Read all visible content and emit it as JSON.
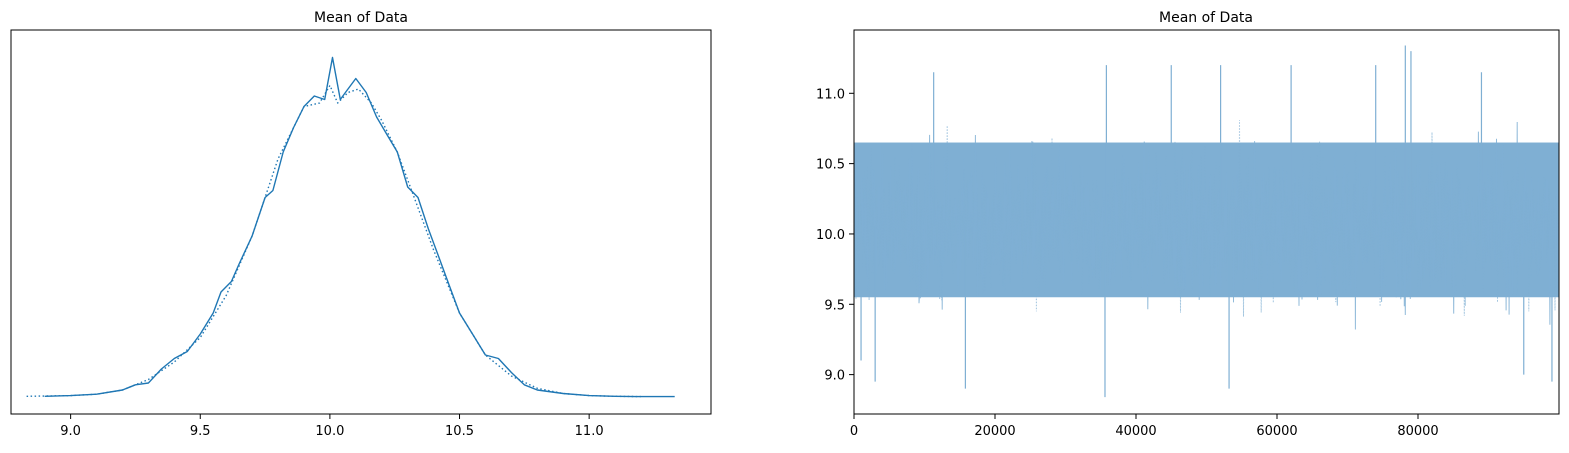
{
  "figure": {
    "colors": {
      "line": "#1f77b4",
      "trace_fill": "#7fafd3",
      "axis": "#000000"
    }
  },
  "chart_data": [
    {
      "type": "line",
      "title": "Mean of Data",
      "xlabel": "",
      "ylabel": "",
      "xlim": [
        8.77,
        11.47
      ],
      "xticks": [
        9.0,
        9.5,
        10.0,
        10.5,
        11.0
      ],
      "xtick_labels": [
        "9.0",
        "9.5",
        "10.0",
        "10.5",
        "11.0"
      ],
      "yticks": [],
      "grid": false,
      "series": [
        {
          "style": "solid",
          "x": [
            8.9,
            9.0,
            9.1,
            9.2,
            9.25,
            9.3,
            9.35,
            9.4,
            9.45,
            9.5,
            9.55,
            9.58,
            9.62,
            9.65,
            9.7,
            9.75,
            9.78,
            9.82,
            9.86,
            9.9,
            9.94,
            9.98,
            10.01,
            10.04,
            10.06,
            10.1,
            10.14,
            10.18,
            10.22,
            10.26,
            10.3,
            10.34,
            10.38,
            10.42,
            10.46,
            10.5,
            10.55,
            10.6,
            10.65,
            10.7,
            10.75,
            10.8,
            10.9,
            11.0,
            11.1,
            11.2,
            11.33
          ],
          "y": [
            0.002,
            0.004,
            0.008,
            0.02,
            0.035,
            0.04,
            0.08,
            0.11,
            0.13,
            0.18,
            0.24,
            0.3,
            0.33,
            0.38,
            0.46,
            0.57,
            0.59,
            0.7,
            0.77,
            0.83,
            0.86,
            0.85,
            0.97,
            0.85,
            0.87,
            0.91,
            0.87,
            0.8,
            0.75,
            0.7,
            0.6,
            0.57,
            0.48,
            0.4,
            0.32,
            0.24,
            0.18,
            0.12,
            0.11,
            0.07,
            0.035,
            0.02,
            0.01,
            0.004,
            0.002,
            0.001,
            0.001
          ]
        },
        {
          "style": "dotted",
          "x": [
            8.83,
            9.0,
            9.1,
            9.2,
            9.3,
            9.4,
            9.5,
            9.6,
            9.7,
            9.8,
            9.9,
            9.96,
            10.0,
            10.03,
            10.07,
            10.11,
            10.16,
            10.2,
            10.26,
            10.32,
            10.4,
            10.5,
            10.6,
            10.7,
            10.8,
            10.9,
            11.0,
            11.1,
            11.2
          ],
          "y": [
            0.002,
            0.004,
            0.008,
            0.02,
            0.05,
            0.1,
            0.17,
            0.29,
            0.46,
            0.68,
            0.83,
            0.84,
            0.89,
            0.84,
            0.87,
            0.88,
            0.84,
            0.79,
            0.7,
            0.58,
            0.42,
            0.24,
            0.12,
            0.06,
            0.025,
            0.01,
            0.004,
            0.002,
            0.001
          ]
        }
      ]
    },
    {
      "type": "line",
      "title": "Mean of Data",
      "xlabel": "",
      "ylabel": "",
      "xlim": [
        0,
        99999
      ],
      "ylim": [
        8.72,
        11.45
      ],
      "xticks": [
        0,
        20000,
        40000,
        60000,
        80000
      ],
      "xtick_labels": [
        "0",
        "20000",
        "40000",
        "60000",
        "80000"
      ],
      "yticks": [
        9.0,
        9.5,
        10.0,
        10.5,
        11.0
      ],
      "ytick_labels": [
        "9.0",
        "9.5",
        "10.0",
        "10.5",
        "11.0"
      ],
      "grid": false,
      "series": [
        {
          "style": "solid",
          "n_samples": 100000,
          "center": 10.06,
          "dense_band": [
            9.55,
            10.65
          ],
          "min": 8.84,
          "max": 11.34
        },
        {
          "style": "dotted",
          "n_samples": 100000,
          "center": 10.06,
          "dense_band": [
            9.55,
            10.65
          ],
          "min": 8.9,
          "max": 11.3
        }
      ]
    }
  ]
}
